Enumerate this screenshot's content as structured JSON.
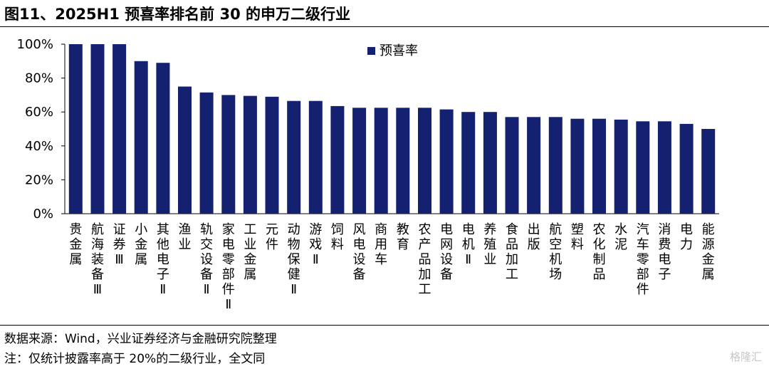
{
  "title": "图11、2025H1 预喜率排名前 30 的申万二级行业",
  "footer": {
    "source": "数据来源：Wind，兴业证券经济与金融研究院整理",
    "note": "注：仅统计披露率高于 20%的二级行业，全文同"
  },
  "watermark": "格隆汇",
  "chart_data": {
    "type": "bar",
    "title": "",
    "xlabel": "",
    "ylabel": "",
    "ylim": [
      0,
      100
    ],
    "y_ticks": [
      "0%",
      "20%",
      "40%",
      "60%",
      "80%",
      "100%"
    ],
    "grid": false,
    "legend_position": "top",
    "series_color": "#142070",
    "categories": [
      "贵金属",
      "航海装备Ⅲ",
      "证券Ⅲ",
      "小金属",
      "其他电子Ⅱ",
      "渔业",
      "轨交设备Ⅱ",
      "家电零部件Ⅱ",
      "工业金属",
      "元件",
      "动物保健Ⅱ",
      "游戏Ⅱ",
      "饲料",
      "风电设备",
      "商用车",
      "教育",
      "农产品加工",
      "电网设备",
      "电机Ⅱ",
      "养殖业",
      "食品加工",
      "出版",
      "航空机场",
      "塑料",
      "农化制品",
      "水泥",
      "汽车零部件",
      "消费电子",
      "电力",
      "能源金属"
    ],
    "series": [
      {
        "name": "预喜率",
        "values": [
          100,
          100,
          100,
          90,
          89,
          75,
          71.5,
          70,
          69.5,
          69,
          66.5,
          66.5,
          63.5,
          62.5,
          62.5,
          62.5,
          62.5,
          61.5,
          60,
          60,
          57,
          57,
          57,
          56,
          56,
          55.5,
          54.5,
          54.5,
          53,
          50
        ]
      }
    ]
  }
}
